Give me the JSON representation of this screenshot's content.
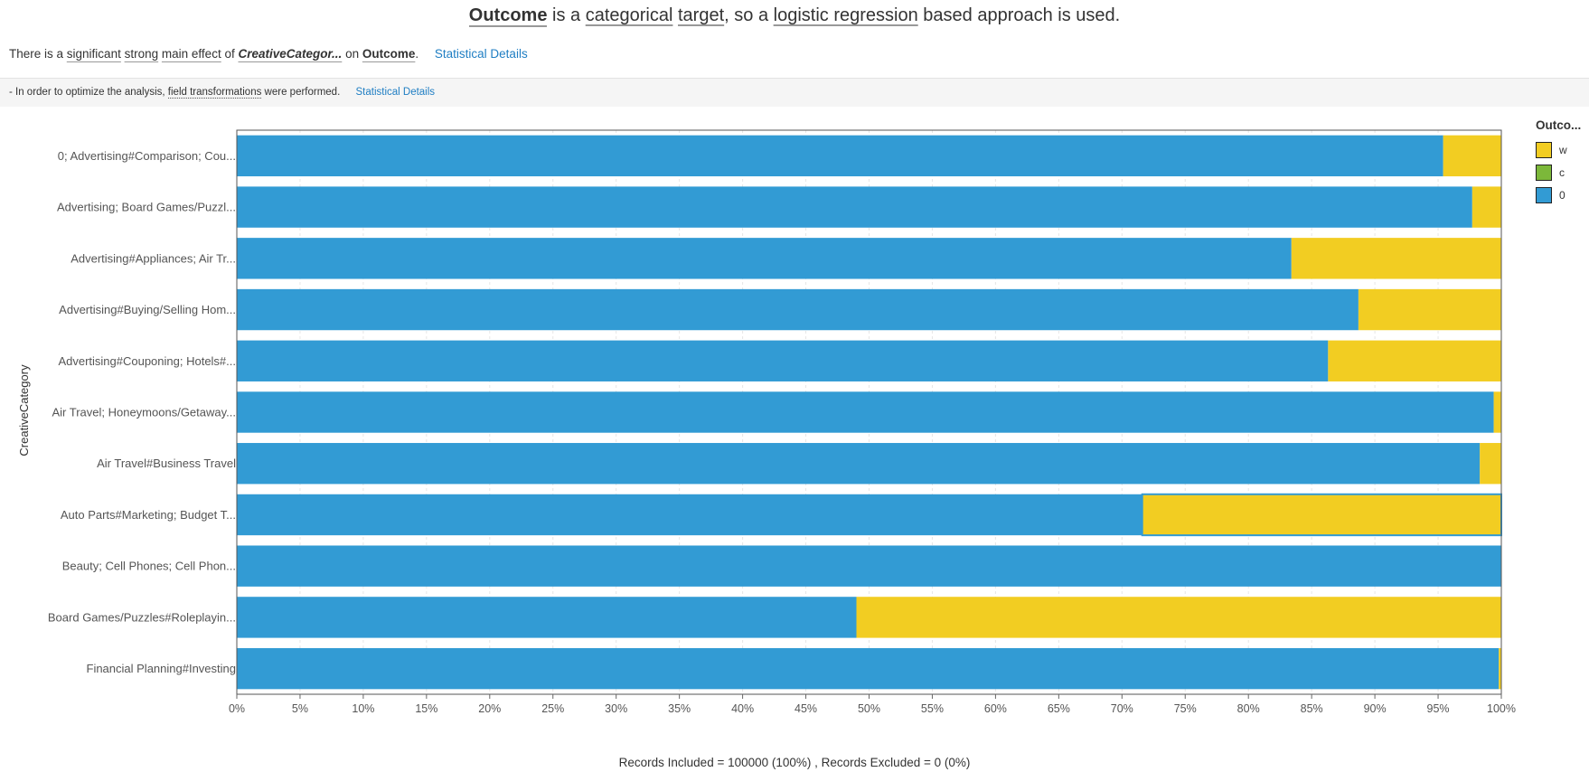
{
  "headline": {
    "target": "Outcome",
    "t1": "is a",
    "categorical": "categorical",
    "target_word": "target",
    "t2": ", so a",
    "method": "logistic regression",
    "t3": "based approach is used."
  },
  "summary": {
    "t1": "There is a",
    "significant": "significant",
    "strong": "strong",
    "main_effect": "main effect",
    "t2": "of",
    "field": "CreativeCategor...",
    "t3": "on",
    "target": "Outcome",
    "t4": ".",
    "details_link": "Statistical Details"
  },
  "notes": {
    "t1": "- In order to optimize the analysis,",
    "transform": "field transformations",
    "t2": "were performed.",
    "details_link": "Statistical Details"
  },
  "footer": "Records Included = 100000 (100%) , Records Excluded = 0 (0%)",
  "legend": {
    "title": "Outco...",
    "items": [
      {
        "label": "w",
        "color": "#f2cd22"
      },
      {
        "label": "c",
        "color": "#7cb83a"
      },
      {
        "label": "0",
        "color": "#329bd4"
      }
    ]
  },
  "chart_data": {
    "type": "bar",
    "orientation": "horizontal",
    "stacked": "100%",
    "ylabel": "CreativeCategory",
    "xlabel": "",
    "xlim": [
      0,
      100
    ],
    "xticks": [
      "0%",
      "5%",
      "10%",
      "15%",
      "20%",
      "25%",
      "30%",
      "35%",
      "40%",
      "45%",
      "50%",
      "55%",
      "60%",
      "65%",
      "70%",
      "75%",
      "80%",
      "85%",
      "90%",
      "95%",
      "100%"
    ],
    "grid": "vertical dashed",
    "legend_position": "right",
    "categories": [
      "0; Advertising#Comparison; Cou...",
      "Advertising; Board Games/Puzzl...",
      "Advertising#Appliances; Air Tr...",
      "Advertising#Buying/Selling Hom...",
      "Advertising#Couponing; Hotels#...",
      "Air Travel; Honeymoons/Getaway...",
      "Air Travel#Business Travel",
      "Auto Parts#Marketing; Budget T...",
      "Beauty; Cell Phones; Cell Phon...",
      "Board Games/Puzzles#Roleplayin...",
      "Financial Planning#Investing"
    ],
    "series": [
      {
        "name": "0",
        "color": "#329bd4",
        "values": [
          95.4,
          97.7,
          83.4,
          88.7,
          86.3,
          99.4,
          98.3,
          71.6,
          100.0,
          49.0,
          99.8
        ]
      },
      {
        "name": "c",
        "color": "#7cb83a",
        "values": [
          0,
          0,
          0,
          0,
          0,
          0,
          0,
          0,
          0,
          0,
          0
        ]
      },
      {
        "name": "w",
        "color": "#f2cd22",
        "values": [
          4.6,
          2.3,
          16.6,
          11.3,
          13.7,
          0.6,
          1.7,
          28.4,
          0.0,
          51.0,
          0.2
        ]
      }
    ],
    "highlighted": {
      "category_index": 7,
      "series": "w"
    }
  }
}
